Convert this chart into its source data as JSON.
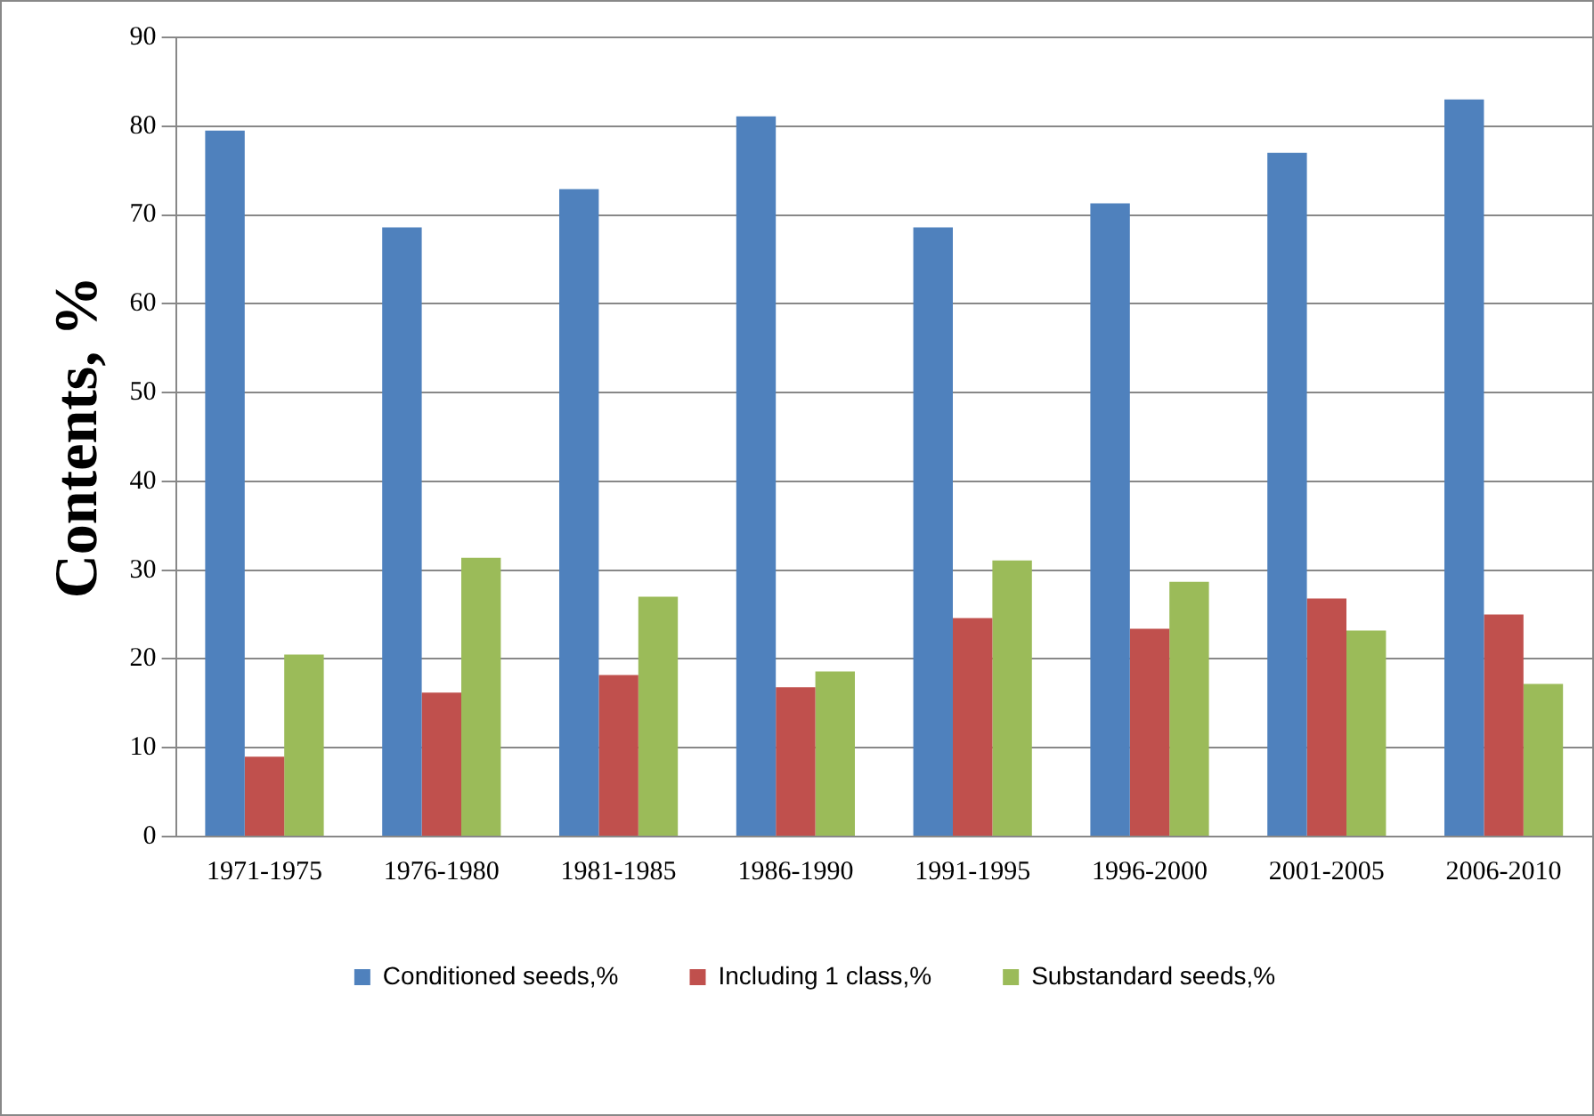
{
  "chart_data": {
    "type": "bar",
    "ylabel": "Contents, %",
    "categories": [
      "1971-1975",
      "1976-1980",
      "1981-1985",
      "1986-1990",
      "1991-1995",
      "1996-2000",
      "2001-2005",
      "2006-2010"
    ],
    "series": [
      {
        "name": "Conditioned seeds,%",
        "color": "#4f81bd",
        "values": [
          79.5,
          68.6,
          72.9,
          81.1,
          68.6,
          71.3,
          77.0,
          83.0
        ]
      },
      {
        "name": "Including 1 class,%",
        "color": "#c0504d",
        "values": [
          9.0,
          16.2,
          18.2,
          16.8,
          24.6,
          23.4,
          26.8,
          25.0
        ]
      },
      {
        "name": "Substandard seeds,%",
        "color": "#9bbb59",
        "values": [
          20.5,
          31.4,
          27.0,
          18.6,
          31.1,
          28.7,
          23.2,
          17.2
        ]
      }
    ],
    "ylim": [
      0,
      90
    ],
    "yticks": [
      0,
      10,
      20,
      30,
      40,
      50,
      60,
      70,
      80,
      90
    ],
    "grid": "y",
    "legend": "bottom"
  }
}
